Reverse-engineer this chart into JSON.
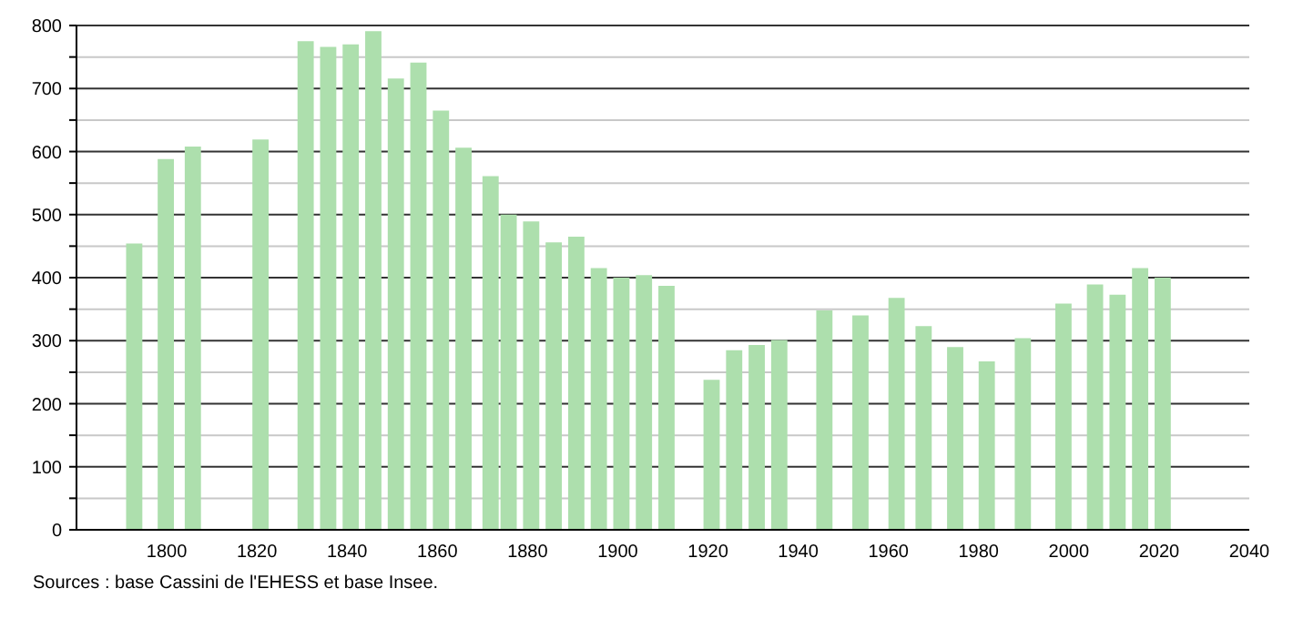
{
  "chart_data": {
    "type": "bar",
    "x": [
      1793,
      1800,
      1806,
      1821,
      1831,
      1836,
      1841,
      1846,
      1851,
      1856,
      1861,
      1866,
      1872,
      1876,
      1881,
      1886,
      1891,
      1896,
      1901,
      1906,
      1911,
      1921,
      1926,
      1931,
      1936,
      1946,
      1954,
      1962,
      1968,
      1975,
      1982,
      1990,
      1999,
      2006,
      2011,
      2016,
      2021
    ],
    "values": [
      454,
      588,
      608,
      619,
      775,
      766,
      770,
      791,
      716,
      741,
      665,
      606,
      561,
      500,
      489,
      456,
      465,
      415,
      400,
      404,
      387,
      238,
      285,
      293,
      301,
      348,
      340,
      368,
      323,
      290,
      267,
      304,
      359,
      389,
      373,
      415,
      400
    ],
    "color": "#addfad",
    "xlim": [
      1780,
      2040
    ],
    "xticks": [
      1800,
      1820,
      1840,
      1860,
      1880,
      1900,
      1920,
      1940,
      1960,
      1980,
      2000,
      2020,
      2040
    ],
    "ylim": [
      0,
      800
    ],
    "yticks": [
      0,
      {
        "value": 50,
        "label": null
      },
      100,
      {
        "value": 150,
        "label": null
      },
      200,
      {
        "value": 250,
        "label": null
      },
      300,
      {
        "value": 350,
        "label": null
      },
      400,
      {
        "value": 450,
        "label": null
      },
      500,
      {
        "value": 550,
        "label": null
      },
      600,
      {
        "value": 650,
        "label": null
      },
      700,
      {
        "value": 750,
        "label": null
      },
      800
    ],
    "grid": "y",
    "legend": false,
    "annotations": [
      "Sources : base Cassini de l'EHESS et base Insee."
    ]
  }
}
